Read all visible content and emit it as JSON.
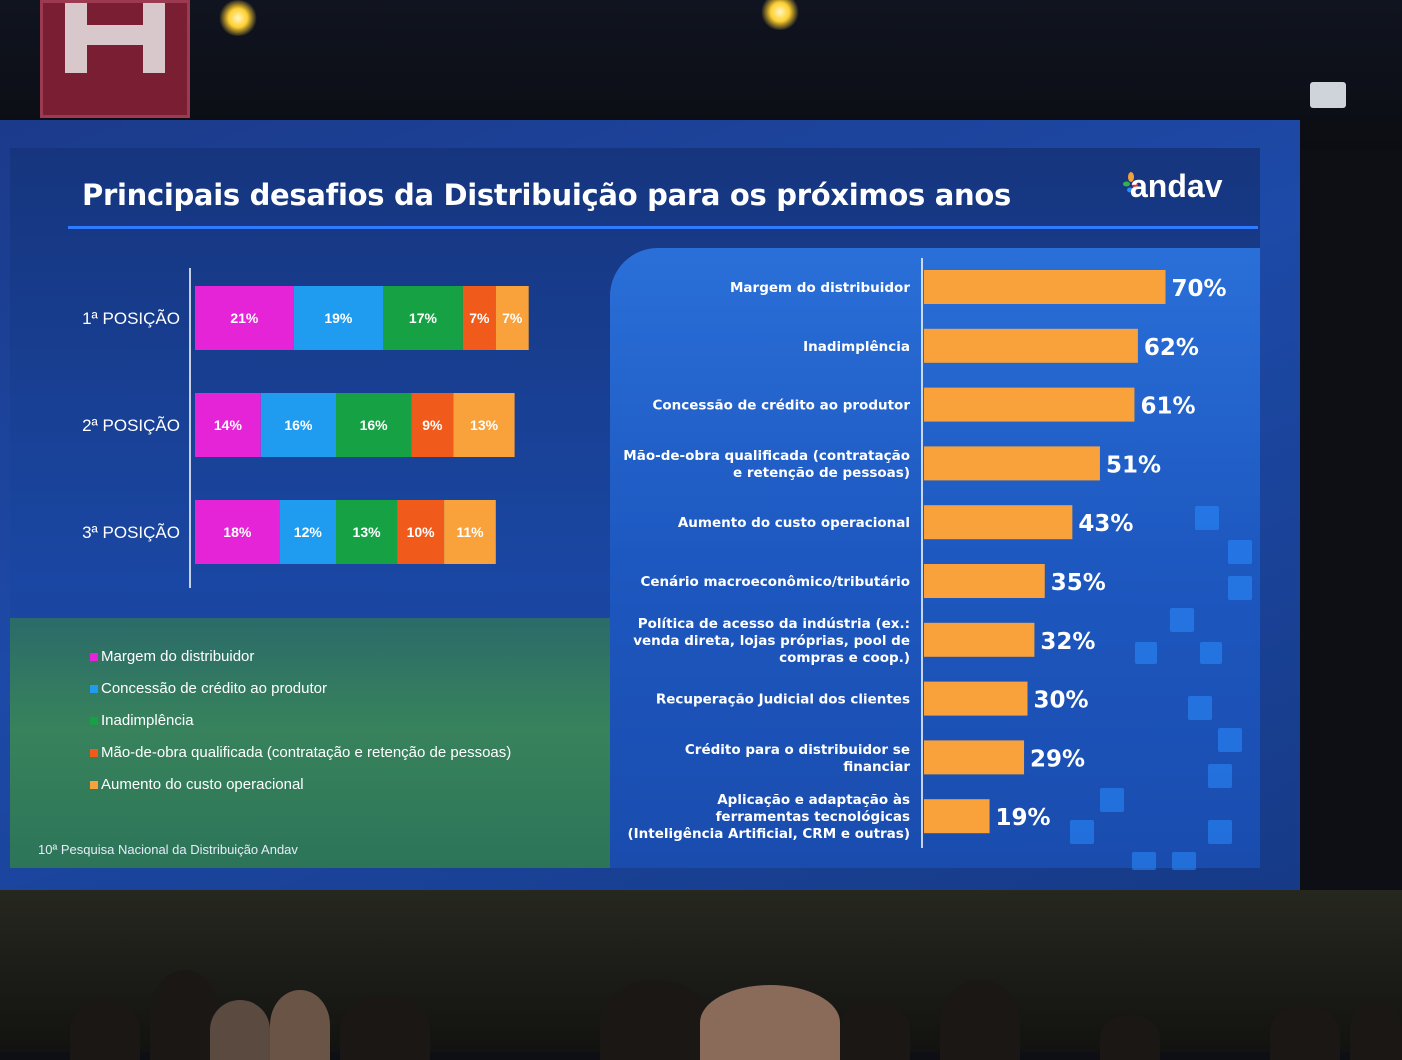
{
  "slide": {
    "title": "Principais desafios da Distribuição para os próximos anos",
    "logo_text": "andav",
    "source": "10ª Pesquisa Nacional da Distribuição Andav"
  },
  "colors": {
    "magenta": "#e524d8",
    "blue": "#1f9bf0",
    "green": "#16a244",
    "orange_red": "#f05a1a",
    "orange": "#f9a23b",
    "bar_right": "#f9a23b",
    "title_line": "#2f7bff"
  },
  "legend": [
    {
      "label": "Margem do distribuidor",
      "color": "#e524d8"
    },
    {
      "label": "Concessão de crédito ao produtor",
      "color": "#1f9bf0"
    },
    {
      "label": "Inadimplência",
      "color": "#16a244"
    },
    {
      "label": "Mão-de-obra qualificada (contratação e retenção de pessoas)",
      "color": "#f05a1a"
    },
    {
      "label": "Aumento do custo operacional",
      "color": "#f9a23b"
    }
  ],
  "chart_data": [
    {
      "type": "bar",
      "orientation": "horizontal-stacked",
      "categories": [
        "1ª POSIÇÃO",
        "2ª POSIÇÃO",
        "3ª POSIÇÃO"
      ],
      "series": [
        {
          "name": "Margem do distribuidor",
          "values": [
            21,
            14,
            18
          ],
          "labels": [
            "21%",
            "14%",
            "18%"
          ]
        },
        {
          "name": "Concessão de crédito ao produtor",
          "values": [
            19,
            16,
            12
          ],
          "labels": [
            "19%",
            "16%",
            "12%"
          ]
        },
        {
          "name": "Inadimplência",
          "values": [
            17,
            16,
            13
          ],
          "labels": [
            "17%",
            "16%",
            "13%"
          ]
        },
        {
          "name": "Mão-de-obra qualificada (contratação e retenção de pessoas)",
          "values": [
            7,
            9,
            10
          ],
          "labels": [
            "7%",
            "9%",
            "10%"
          ]
        },
        {
          "name": "Aumento do custo operacional",
          "values": [
            7,
            13,
            11
          ],
          "labels": [
            "7%",
            "13%",
            "11%"
          ]
        }
      ],
      "grid": false,
      "legend_position": "bottom-left"
    },
    {
      "type": "bar",
      "orientation": "horizontal",
      "categories": [
        [
          "Margem do distribuidor"
        ],
        [
          "Inadimplência"
        ],
        [
          "Concessão de crédito ao produtor"
        ],
        [
          "Mão-de-obra qualificada (contratação",
          "e retenção de pessoas)"
        ],
        [
          "Aumento do custo operacional"
        ],
        [
          "Cenário macroeconômico/tributário"
        ],
        [
          "Política de acesso da indústria (ex.:",
          "venda direta, lojas próprias, pool de",
          "compras e coop.)"
        ],
        [
          "Recuperação Judicial dos clientes"
        ],
        [
          "Crédito para o distribuidor se",
          "financiar"
        ],
        [
          "Aplicação e adaptação às",
          "ferramentas tecnológicas",
          "(Inteligência Artificial, CRM e outras)"
        ]
      ],
      "values": [
        70,
        62,
        61,
        51,
        43,
        35,
        32,
        30,
        29,
        19
      ],
      "labels": [
        "70%",
        "62%",
        "61%",
        "51%",
        "43%",
        "35%",
        "32%",
        "30%",
        "29%",
        "19%"
      ],
      "xlim": [
        0,
        100
      ],
      "grid": false
    }
  ]
}
